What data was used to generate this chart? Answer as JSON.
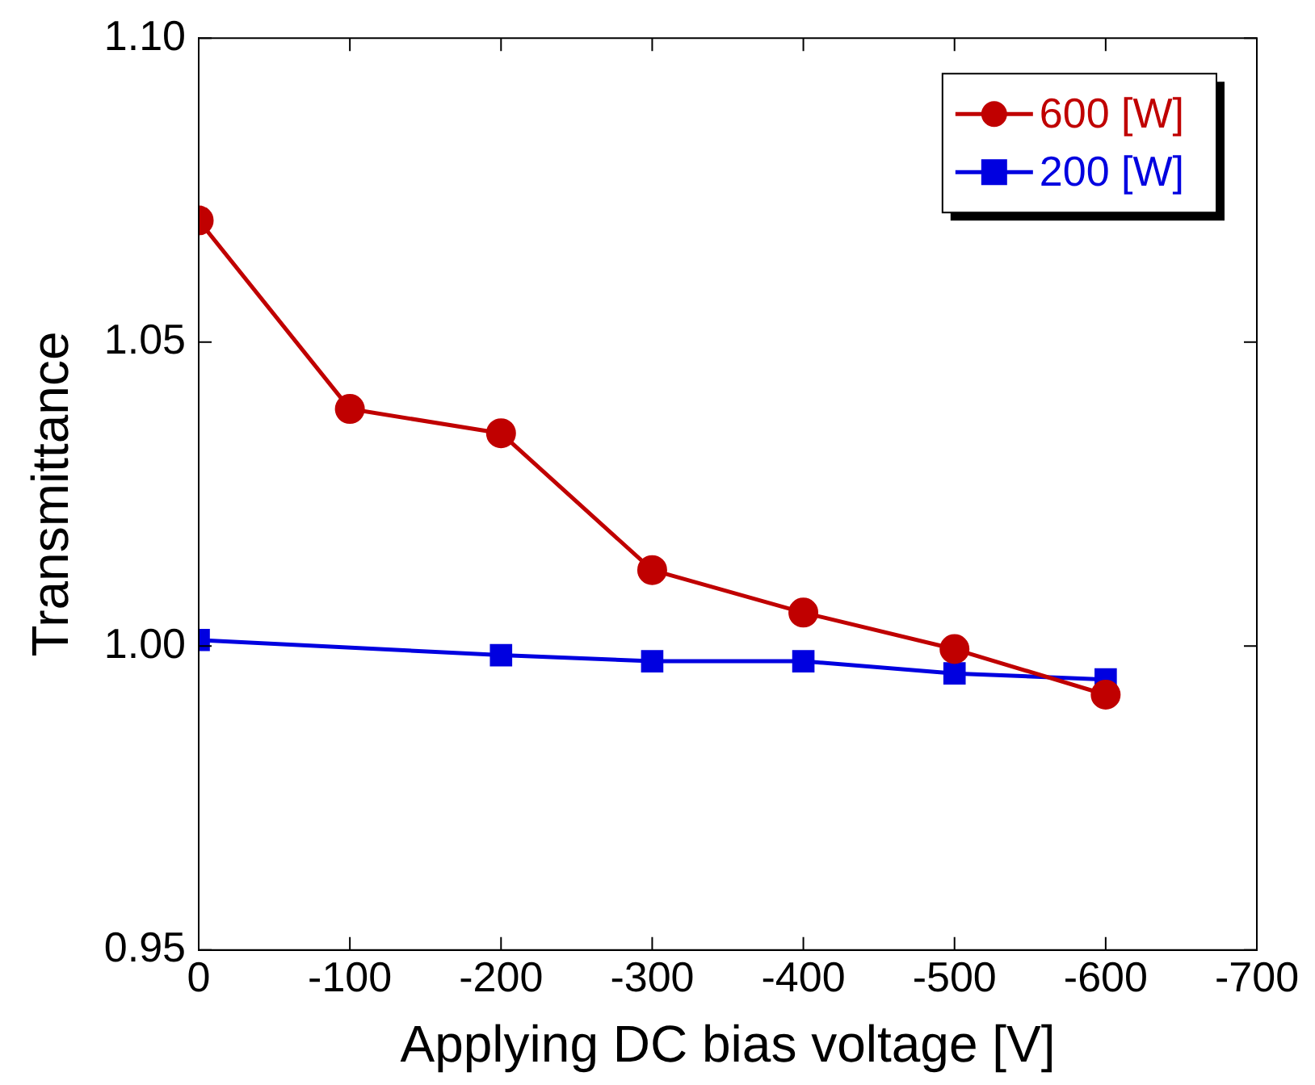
{
  "chart_data": {
    "type": "line",
    "xlabel": "Applying DC bias voltage [V]",
    "ylabel": "Transmittance",
    "x": [
      0,
      -100,
      -200,
      -300,
      -400,
      -500,
      -600
    ],
    "series": [
      {
        "name": "600 [W]",
        "color": "#c00000",
        "marker": "circle",
        "values": [
          1.07,
          1.039,
          1.035,
          1.0125,
          1.0055,
          0.9995,
          0.992
        ]
      },
      {
        "name": "200 [W]",
        "color": "#0000e0",
        "marker": "square",
        "values": [
          1.001,
          null,
          0.9985,
          0.9975,
          0.9975,
          0.9955,
          0.9945
        ]
      }
    ],
    "xlim": [
      0,
      -700
    ],
    "xticks": [
      0,
      -100,
      -200,
      -300,
      -400,
      -500,
      -600,
      -700
    ],
    "ylim": [
      0.95,
      1.1
    ],
    "yticks": [
      {
        "value": 0.95,
        "label": "0.95"
      },
      {
        "value": 1.0,
        "label": "1.00"
      },
      {
        "value": 1.05,
        "label": "1.05"
      },
      {
        "value": 1.1,
        "label": "1.10"
      }
    ],
    "grid": false,
    "legend": "top right"
  }
}
